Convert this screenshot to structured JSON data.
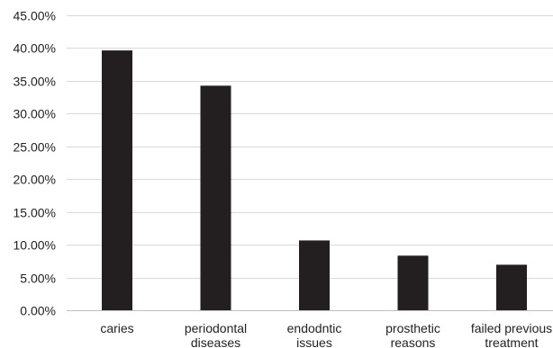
{
  "chart_data": {
    "type": "bar",
    "categories": [
      [
        "caries"
      ],
      [
        "periodontal",
        "diseases"
      ],
      [
        "endodntic",
        "issues"
      ],
      [
        "prosthetic",
        "reasons"
      ],
      [
        "failed previous",
        "treatment"
      ]
    ],
    "values": [
      0.3963,
      0.3426,
      0.1065,
      0.0833,
      0.0694
    ],
    "yticks": [
      "0.00%",
      "5.00%",
      "10.00%",
      "15.00%",
      "20.00%",
      "25.00%",
      "30.00%",
      "35.00%",
      "40.00%",
      "45.00%"
    ],
    "ylim": [
      0,
      0.45
    ],
    "grid": true,
    "colors": {
      "bar": "#231f20",
      "grid": "#d9d9d9",
      "axis": "#bfbfbf",
      "text": "#222222"
    }
  }
}
